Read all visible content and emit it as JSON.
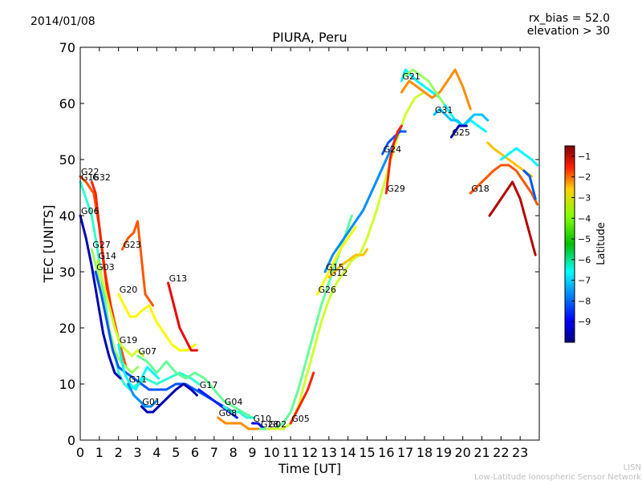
{
  "header": {
    "date": "2014/01/08",
    "rx_bias": "rx_bias = 52.0",
    "elevation": "elevation > 30"
  },
  "footer": {
    "line1": "LISN",
    "line2": "Low-Latitude Ionospheric Sensor Network"
  },
  "colors": {
    "background": "#ffffff",
    "axes": "#000000",
    "footer_text": "#bfbfbf"
  },
  "chart_data": {
    "type": "line",
    "title": "PIURA, Peru",
    "xlabel": "Time [UT]",
    "ylabel": "TEC [UNITS]",
    "xlim": [
      0,
      24
    ],
    "ylim": [
      0,
      70
    ],
    "xticks": [
      0,
      1,
      2,
      3,
      4,
      5,
      6,
      7,
      8,
      9,
      10,
      11,
      12,
      13,
      14,
      15,
      16,
      17,
      18,
      19,
      20,
      21,
      22,
      23
    ],
    "yticks": [
      0,
      10,
      20,
      30,
      40,
      50,
      60,
      70
    ],
    "grid": false,
    "colorbar": {
      "label": "Latitude",
      "range": [
        -10,
        -0.5
      ],
      "ticks": [
        -1,
        -2,
        -3,
        -4,
        -5,
        -6,
        -7,
        -8,
        -9
      ],
      "colormap": "jet"
    },
    "series": [
      {
        "name": "G22",
        "latitude": -2.5,
        "x": [
          0,
          0.3,
          0.7,
          1.0,
          1.3,
          1.6,
          2.0,
          2.4
        ],
        "y": [
          47,
          46,
          44,
          38,
          30,
          24,
          18,
          13
        ]
      },
      {
        "name": "G32",
        "latitude": -2.0,
        "x": [
          0.6,
          0.8,
          1.0,
          1.2,
          1.4,
          1.7
        ],
        "y": [
          46,
          44,
          38,
          32,
          27,
          22
        ]
      },
      {
        "name": "G16",
        "latitude": -6.0,
        "x": [
          0,
          0.3,
          0.6,
          0.9,
          1.2,
          1.5,
          1.8,
          2.0,
          2.3,
          2.6,
          3.0,
          3.4,
          4.0,
          4.6,
          5.2,
          5.8,
          6.2
        ],
        "y": [
          46,
          43,
          40,
          34,
          27,
          20,
          16,
          12,
          10,
          9,
          10,
          11,
          10,
          11,
          12,
          11,
          10
        ]
      },
      {
        "name": "G06",
        "latitude": -9.5,
        "x": [
          0,
          0.3,
          0.6,
          0.9,
          1.2,
          1.5,
          1.8,
          2.1
        ],
        "y": [
          40,
          36,
          31,
          25,
          19,
          15,
          12,
          11
        ]
      },
      {
        "name": "G27",
        "latitude": -5.0,
        "x": [
          0.6,
          0.9,
          1.2,
          1.5,
          1.8,
          2.1,
          2.4,
          2.7,
          3.0
        ],
        "y": [
          34,
          30,
          25,
          20,
          16,
          14,
          13,
          12,
          13
        ]
      },
      {
        "name": "G14",
        "latitude": -4.5,
        "x": [
          0.9,
          1.2,
          1.5,
          1.8,
          2.1,
          2.4,
          2.7,
          3.0,
          3.3
        ],
        "y": [
          32,
          28,
          24,
          20,
          17,
          16,
          15,
          16,
          15
        ]
      },
      {
        "name": "G03",
        "latitude": -8.0,
        "x": [
          0.8,
          1.1,
          1.4,
          1.7,
          2.0,
          2.4,
          2.8,
          3.2,
          3.6,
          4.0,
          4.5,
          5.0,
          5.5,
          6.0,
          6.5,
          7.0,
          7.5,
          8.0
        ],
        "y": [
          30,
          26,
          21,
          16,
          13,
          12,
          11,
          10,
          9,
          9,
          9,
          10,
          10,
          9,
          8,
          7,
          6,
          5
        ]
      },
      {
        "name": "G20",
        "latitude": -4.0,
        "x": [
          2.0,
          2.3,
          2.6,
          2.9,
          3.2,
          3.6,
          4.0,
          4.4,
          4.8,
          5.2,
          5.6,
          6.0
        ],
        "y": [
          26,
          24,
          22,
          22,
          23,
          24,
          21,
          19,
          17,
          16,
          16,
          17
        ]
      },
      {
        "name": "G23",
        "latitude": -2.5,
        "x": [
          2.2,
          2.5,
          2.8,
          3.0,
          3.4,
          3.8
        ],
        "y": [
          34,
          36,
          37,
          39,
          26,
          24
        ]
      },
      {
        "name": "G13",
        "latitude": -1.5,
        "x": [
          4.6,
          4.9,
          5.2,
          5.5,
          5.8,
          6.1
        ],
        "y": [
          28,
          24,
          20,
          18,
          16,
          16
        ]
      },
      {
        "name": "G19",
        "latitude": -6.5,
        "x": [
          2.0,
          2.3,
          2.6,
          2.9,
          3.2,
          3.5,
          3.8,
          4.1
        ],
        "y": [
          17,
          12,
          10,
          9,
          11,
          13,
          12,
          11
        ]
      },
      {
        "name": "G07",
        "latitude": -5.5,
        "x": [
          3.0,
          3.5,
          4.0,
          4.5,
          5.0,
          5.5,
          6.0,
          6.5,
          7.0,
          7.5,
          8.0,
          8.5,
          9.0
        ],
        "y": [
          15,
          14,
          12,
          14,
          12,
          11,
          12,
          11,
          9,
          7,
          6,
          5,
          4
        ]
      },
      {
        "name": "G01",
        "latitude": -9.5,
        "x": [
          3.2,
          3.5,
          3.8,
          4.1,
          4.4,
          4.7,
          5.0,
          5.4,
          5.8,
          6.1
        ],
        "y": [
          6,
          5,
          5,
          6,
          7,
          8,
          9,
          10,
          9,
          8
        ]
      },
      {
        "name": "G17",
        "latitude": -8.5,
        "x": [
          6.2,
          6.6,
          7.0,
          7.4,
          7.8,
          8.2
        ],
        "y": [
          9,
          8,
          7,
          6,
          5,
          4
        ]
      },
      {
        "name": "G11",
        "latitude": -7.5,
        "x": [
          2.5,
          2.8,
          3.1,
          3.4,
          3.7,
          4.0
        ],
        "y": [
          10,
          8,
          7,
          6,
          6,
          7
        ]
      },
      {
        "name": "G04",
        "latitude": -6.0,
        "x": [
          7.5,
          7.9,
          8.3,
          8.7,
          9.1
        ],
        "y": [
          6,
          5,
          5,
          4,
          4
        ]
      },
      {
        "name": "G08",
        "latitude": -3.0,
        "x": [
          7.2,
          7.6,
          8.0,
          8.4,
          8.8,
          9.2,
          9.6
        ],
        "y": [
          4,
          3,
          3,
          3,
          2,
          2,
          2
        ]
      },
      {
        "name": "G10",
        "latitude": -9.0,
        "x": [
          9.0,
          9.3,
          9.6,
          9.9,
          10.2
        ],
        "y": [
          3,
          3,
          2,
          2,
          2
        ]
      },
      {
        "name": "G28",
        "latitude": -5.5,
        "x": [
          9.4,
          9.8,
          10.2,
          10.6,
          11.0,
          11.4,
          11.8,
          12.2,
          12.6,
          13.0,
          13.4,
          13.8,
          14.2
        ],
        "y": [
          2,
          2,
          2,
          3,
          5,
          9,
          14,
          19,
          24,
          28,
          32,
          36,
          40
        ]
      },
      {
        "name": "G02",
        "latitude": -4.5,
        "x": [
          9.8,
          10.2,
          10.6,
          11.0,
          11.4,
          11.8,
          12.2,
          12.6,
          13.0,
          13.4,
          13.8,
          14.2,
          14.6,
          15.0,
          15.5,
          16.0,
          16.5,
          17.0,
          17.5,
          18.0
        ],
        "y": [
          2,
          2,
          2,
          3,
          6,
          11,
          16,
          21,
          25,
          28,
          30,
          32,
          33,
          36,
          41,
          47,
          53,
          58,
          61,
          62
        ]
      },
      {
        "name": "G05",
        "latitude": -2.0,
        "x": [
          11.0,
          11.3,
          11.6,
          11.9,
          12.2
        ],
        "y": [
          3,
          5,
          7,
          9,
          12
        ]
      },
      {
        "name": "G26",
        "latitude": -4.0,
        "x": [
          12.4,
          12.7,
          13.0,
          13.3,
          13.6,
          14.0,
          14.4
        ],
        "y": [
          26,
          28,
          30,
          32,
          34,
          36,
          38
        ]
      },
      {
        "name": "G12",
        "latitude": -3.5,
        "x": [
          13.0,
          13.3,
          13.6,
          14.0,
          14.4,
          14.8,
          15.0
        ],
        "y": [
          29,
          30,
          31,
          32,
          33,
          33,
          34
        ]
      },
      {
        "name": "G15",
        "latitude": -7.5,
        "x": [
          12.8,
          13.2,
          13.6,
          14.0,
          14.4,
          14.8,
          15.2,
          15.6,
          16.0,
          16.4,
          16.8
        ],
        "y": [
          30,
          33,
          35,
          37,
          39,
          41,
          44,
          47,
          50,
          53,
          56
        ]
      },
      {
        "name": "G24",
        "latitude": -8.0,
        "x": [
          15.8,
          16.1,
          16.4,
          16.7,
          17.0
        ],
        "y": [
          51,
          53,
          54,
          55,
          55
        ]
      },
      {
        "name": "G29",
        "latitude": -2.0,
        "x": [
          16.0,
          16.2,
          16.4,
          16.6,
          16.8
        ],
        "y": [
          44,
          50,
          53,
          55,
          56
        ]
      },
      {
        "name": "G21",
        "latitude": -6.5,
        "x": [
          16.8,
          17.0,
          17.3,
          17.6,
          18.0,
          18.4,
          18.8,
          19.2,
          19.6,
          20.0,
          20.4,
          20.8,
          21.2
        ],
        "y": [
          64,
          66,
          65,
          64,
          63,
          62,
          61,
          59,
          57,
          56,
          57,
          56,
          55
        ]
      },
      {
        "name": "G31",
        "latitude": -7.0,
        "x": [
          18.5,
          18.8,
          19.1,
          19.4,
          19.7,
          20.0,
          20.3,
          20.6,
          21.0,
          21.3
        ],
        "y": [
          58,
          59,
          58,
          57,
          57,
          56,
          57,
          58,
          58,
          57
        ]
      },
      {
        "name": "G25",
        "latitude": -9.5,
        "x": [
          19.4,
          19.6,
          19.8,
          20.0,
          20.2
        ],
        "y": [
          54,
          55,
          56,
          56,
          56
        ]
      },
      {
        "name": "G18",
        "latitude": -2.5,
        "x": [
          20.4,
          20.7,
          21.0,
          21.3,
          21.6,
          22.0,
          22.4,
          22.8,
          23.2,
          23.6,
          23.9
        ],
        "y": [
          44,
          45,
          46,
          47,
          48,
          49,
          49,
          48,
          46,
          44,
          42
        ]
      }
    ],
    "extra_segments": [
      {
        "latitude": -3.0,
        "x": [
          16.8,
          17.2,
          17.6,
          18.0,
          18.4,
          18.8,
          19.2,
          19.6,
          20.0,
          20.4
        ],
        "y": [
          62,
          64,
          63,
          62,
          61,
          62,
          64,
          66,
          63,
          59
        ]
      },
      {
        "latitude": -5.0,
        "x": [
          17.0,
          17.4,
          17.8,
          18.2,
          18.6,
          19.0
        ],
        "y": [
          65,
          66,
          65,
          64,
          62,
          60
        ]
      },
      {
        "latitude": -3.5,
        "x": [
          21.3,
          21.6,
          22.0,
          22.4,
          22.8,
          23.2,
          23.6
        ],
        "y": [
          53,
          52,
          51,
          50,
          49,
          48,
          47
        ]
      },
      {
        "latitude": -6.5,
        "x": [
          22.0,
          22.4,
          22.8,
          23.2,
          23.6,
          23.9
        ],
        "y": [
          50,
          51,
          52,
          51,
          50,
          49
        ]
      },
      {
        "latitude": -1.0,
        "x": [
          21.4,
          21.8,
          22.2,
          22.6,
          23.0,
          23.4,
          23.8
        ],
        "y": [
          40,
          42,
          44,
          46,
          43,
          38,
          33
        ]
      },
      {
        "latitude": -8.0,
        "x": [
          23.2,
          23.5,
          23.8
        ],
        "y": [
          48,
          47,
          43
        ]
      }
    ]
  }
}
